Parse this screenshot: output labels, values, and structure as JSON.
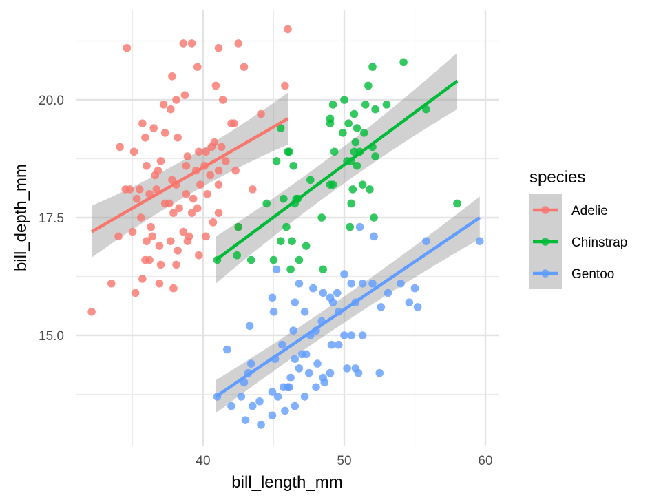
{
  "chart_data": {
    "type": "scatter",
    "title": "",
    "xlabel": "bill_length_mm",
    "ylabel": "bill_depth_mm",
    "xlim": [
      31.4,
      60.7
    ],
    "ylim": [
      12.8,
      21.7
    ],
    "xticks": [
      40,
      50,
      60
    ],
    "xtick_labels": [
      "40",
      "50",
      "60"
    ],
    "xminor": [
      35,
      45,
      55
    ],
    "yticks": [
      15.0,
      17.5,
      20.0
    ],
    "ytick_labels": [
      "15.0",
      "17.5",
      "20.0"
    ],
    "yminor": [
      13.75,
      16.25,
      18.75,
      21.25
    ],
    "grid": true,
    "legend": {
      "title": "species",
      "placement": "right"
    },
    "series": [
      {
        "name": "Adelie",
        "color": "#F8766D",
        "fit": {
          "x": [
            32.1,
            46.0
          ],
          "y": [
            17.2,
            19.6
          ],
          "se": [
            0.55,
            0.55
          ]
        },
        "points": [
          [
            34.6,
            21.1
          ],
          [
            39.2,
            21.2
          ],
          [
            38.6,
            21.2
          ],
          [
            42.5,
            21.2
          ],
          [
            41.1,
            21.1
          ],
          [
            42.9,
            20.7
          ],
          [
            37.8,
            20.5
          ],
          [
            39.6,
            20.7
          ],
          [
            40.9,
            20.3
          ],
          [
            45.8,
            20.3
          ],
          [
            38.7,
            20.1
          ],
          [
            41.4,
            20.0
          ],
          [
            37.7,
            19.8
          ],
          [
            38.1,
            20.0
          ],
          [
            37.2,
            19.9
          ],
          [
            44.1,
            19.7
          ],
          [
            36.5,
            19.4
          ],
          [
            42.2,
            19.5
          ],
          [
            42.0,
            19.5
          ],
          [
            40.8,
            19.1
          ],
          [
            35.7,
            19.5
          ],
          [
            37.3,
            19.3
          ],
          [
            38.2,
            19.2
          ],
          [
            34.1,
            19.0
          ],
          [
            40.6,
            19.0
          ],
          [
            41.3,
            19.0
          ],
          [
            35.1,
            18.9
          ],
          [
            39.7,
            18.9
          ],
          [
            37.0,
            18.7
          ],
          [
            40.2,
            18.9
          ],
          [
            36.0,
            18.6
          ],
          [
            38.9,
            18.8
          ],
          [
            41.6,
            18.7
          ],
          [
            35.9,
            19.2
          ],
          [
            37.8,
            18.3
          ],
          [
            36.8,
            18.5
          ],
          [
            39.5,
            18.5
          ],
          [
            41.1,
            18.5
          ],
          [
            42.3,
            18.5
          ],
          [
            40.5,
            18.4
          ],
          [
            38.8,
            18.6
          ],
          [
            40.1,
            18.6
          ],
          [
            35.5,
            18.1
          ],
          [
            36.6,
            18.4
          ],
          [
            34.5,
            18.1
          ],
          [
            38.1,
            18.2
          ],
          [
            34.8,
            18.1
          ],
          [
            41.1,
            18.2
          ],
          [
            39.8,
            18.2
          ],
          [
            38.8,
            18.0
          ],
          [
            35.3,
            17.9
          ],
          [
            36.2,
            18.0
          ],
          [
            39.3,
            17.9
          ],
          [
            40.3,
            18.0
          ],
          [
            37.6,
            17.8
          ],
          [
            39.6,
            17.7
          ],
          [
            36.7,
            18.1
          ],
          [
            38.3,
            17.7
          ],
          [
            37.9,
            17.6
          ],
          [
            35.6,
            17.5
          ],
          [
            39.2,
            17.6
          ],
          [
            41.1,
            17.6
          ],
          [
            43.5,
            18.1
          ],
          [
            40.7,
            17.4
          ],
          [
            36.3,
            17.3
          ],
          [
            42.5,
            17.3
          ],
          [
            34.0,
            17.1
          ],
          [
            38.6,
            17.2
          ],
          [
            35.0,
            17.2
          ],
          [
            39.0,
            17.1
          ],
          [
            36.0,
            17.0
          ],
          [
            37.7,
            17.0
          ],
          [
            38.9,
            17.0
          ],
          [
            40.2,
            17.1
          ],
          [
            36.9,
            16.9
          ],
          [
            38.2,
            16.8
          ],
          [
            35.9,
            16.6
          ],
          [
            36.2,
            16.6
          ],
          [
            37.0,
            16.5
          ],
          [
            38.1,
            16.5
          ],
          [
            39.7,
            16.7
          ],
          [
            36.4,
            17.1
          ],
          [
            35.7,
            16.2
          ],
          [
            36.9,
            16.1
          ],
          [
            37.9,
            16.0
          ],
          [
            35.2,
            15.9
          ],
          [
            33.5,
            16.1
          ],
          [
            32.1,
            15.5
          ],
          [
            46.0,
            21.5
          ],
          [
            37.3,
            17.8
          ]
        ]
      },
      {
        "name": "Chinstrap",
        "color": "#00BA38",
        "fit": {
          "x": [
            40.9,
            58.0
          ],
          "y": [
            16.6,
            20.4
          ],
          "se": [
            0.5,
            0.6
          ]
        },
        "points": [
          [
            54.2,
            20.8
          ],
          [
            52.0,
            20.7
          ],
          [
            51.7,
            20.3
          ],
          [
            50.0,
            20.0
          ],
          [
            51.5,
            19.9
          ],
          [
            53.0,
            19.9
          ],
          [
            50.7,
            19.7
          ],
          [
            49.2,
            19.9
          ],
          [
            52.2,
            19.8
          ],
          [
            55.8,
            19.8
          ],
          [
            49.0,
            19.6
          ],
          [
            49.0,
            19.5
          ],
          [
            50.3,
            19.5
          ],
          [
            50.9,
            19.4
          ],
          [
            49.9,
            19.3
          ],
          [
            51.4,
            19.3
          ],
          [
            45.5,
            19.4
          ],
          [
            50.8,
            19.1
          ],
          [
            50.7,
            18.9
          ],
          [
            51.1,
            18.9
          ],
          [
            52.0,
            19.0
          ],
          [
            49.3,
            18.9
          ],
          [
            46.1,
            18.9
          ],
          [
            46.0,
            18.9
          ],
          [
            50.5,
            18.7
          ],
          [
            50.2,
            18.7
          ],
          [
            50.9,
            18.6
          ],
          [
            52.2,
            18.8
          ],
          [
            45.2,
            18.7
          ],
          [
            46.4,
            18.6
          ],
          [
            51.3,
            18.2
          ],
          [
            49.0,
            18.2
          ],
          [
            49.2,
            18.2
          ],
          [
            50.6,
            18.1
          ],
          [
            47.6,
            18.3
          ],
          [
            45.7,
            17.9
          ],
          [
            46.6,
            17.9
          ],
          [
            46.7,
            17.9
          ],
          [
            46.5,
            17.8
          ],
          [
            44.5,
            17.8
          ],
          [
            45.9,
            17.3
          ],
          [
            42.5,
            17.3
          ],
          [
            51.8,
            18.1
          ],
          [
            50.4,
            17.3
          ],
          [
            48.4,
            17.5
          ],
          [
            45.5,
            17.0
          ],
          [
            46.3,
            17.0
          ],
          [
            47.3,
            16.9
          ],
          [
            43.4,
            16.6
          ],
          [
            45.0,
            16.6
          ],
          [
            46.8,
            16.6
          ],
          [
            42.4,
            16.7
          ],
          [
            46.2,
            16.4
          ],
          [
            48.5,
            16.4
          ],
          [
            41.0,
            16.6
          ],
          [
            58.0,
            17.8
          ],
          [
            52.1,
            17.5
          ],
          [
            50.5,
            17.8
          ]
        ]
      },
      {
        "name": "Gentoo",
        "color": "#619CFF",
        "fit": {
          "x": [
            40.9,
            59.6
          ],
          "y": [
            13.7,
            17.5
          ],
          "se": [
            0.35,
            0.45
          ]
        },
        "points": [
          [
            59.6,
            17.0
          ],
          [
            55.8,
            17.0
          ],
          [
            52.1,
            17.1
          ],
          [
            51.1,
            17.3
          ],
          [
            45.2,
            16.4
          ],
          [
            50.0,
            16.3
          ],
          [
            50.5,
            16.1
          ],
          [
            51.3,
            16.1
          ],
          [
            52.0,
            16.1
          ],
          [
            54.0,
            16.1
          ],
          [
            55.0,
            16.0
          ],
          [
            48.5,
            15.9
          ],
          [
            49.5,
            15.9
          ],
          [
            47.8,
            16.0
          ],
          [
            49.0,
            15.8
          ],
          [
            49.2,
            15.7
          ],
          [
            46.8,
            16.1
          ],
          [
            50.8,
            15.7
          ],
          [
            49.6,
            15.5
          ],
          [
            53.1,
            15.9
          ],
          [
            54.6,
            15.7
          ],
          [
            44.9,
            15.8
          ],
          [
            43.3,
            15.2
          ],
          [
            45.0,
            15.5
          ],
          [
            46.5,
            15.7
          ],
          [
            47.2,
            15.5
          ],
          [
            48.4,
            15.3
          ],
          [
            49.1,
            14.8
          ],
          [
            50.5,
            15.0
          ],
          [
            51.3,
            15.0
          ],
          [
            50.0,
            15.0
          ],
          [
            52.6,
            15.6
          ],
          [
            55.2,
            15.6
          ],
          [
            48.0,
            15.1
          ],
          [
            47.6,
            15.0
          ],
          [
            46.4,
            15.1
          ],
          [
            45.1,
            14.5
          ],
          [
            45.6,
            14.8
          ],
          [
            43.4,
            14.4
          ],
          [
            41.7,
            14.7
          ],
          [
            43.2,
            14.2
          ],
          [
            42.9,
            14.0
          ],
          [
            44.9,
            13.8
          ],
          [
            46.1,
            13.9
          ],
          [
            45.3,
            13.7
          ],
          [
            48.0,
            13.9
          ],
          [
            46.0,
            13.9
          ],
          [
            47.5,
            14.2
          ],
          [
            48.5,
            14.1
          ],
          [
            49.0,
            14.2
          ],
          [
            50.2,
            14.3
          ],
          [
            51.0,
            14.2
          ],
          [
            49.6,
            14.8
          ],
          [
            46.8,
            14.3
          ],
          [
            46.5,
            14.5
          ],
          [
            46.2,
            14.1
          ],
          [
            45.7,
            13.9
          ],
          [
            44.0,
            13.6
          ],
          [
            44.9,
            13.3
          ],
          [
            41.0,
            13.7
          ],
          [
            42.7,
            13.7
          ],
          [
            43.5,
            13.5
          ],
          [
            42.0,
            13.5
          ],
          [
            47.2,
            13.7
          ],
          [
            44.1,
            13.1
          ],
          [
            45.8,
            13.4
          ],
          [
            43.0,
            13.2
          ],
          [
            46.5,
            13.5
          ],
          [
            48.6,
            14.0
          ],
          [
            52.5,
            14.2
          ],
          [
            47.3,
            14.6
          ],
          [
            48.1,
            14.4
          ],
          [
            47.0,
            14.6
          ],
          [
            50.8,
            14.3
          ]
        ]
      }
    ]
  }
}
